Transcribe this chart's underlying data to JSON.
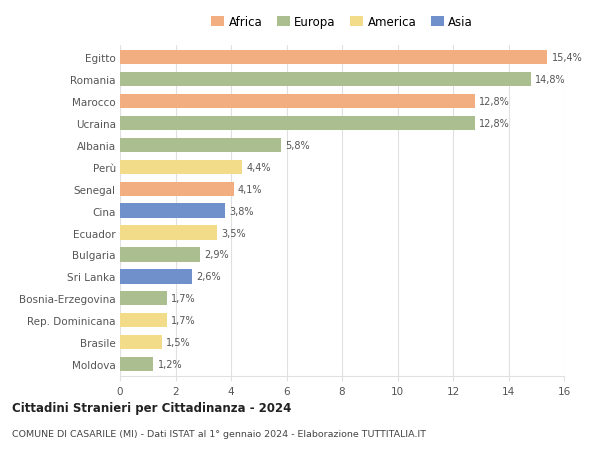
{
  "countries": [
    "Egitto",
    "Romania",
    "Marocco",
    "Ucraina",
    "Albania",
    "Perù",
    "Senegal",
    "Cina",
    "Ecuador",
    "Bulgaria",
    "Sri Lanka",
    "Bosnia-Erzegovina",
    "Rep. Dominicana",
    "Brasile",
    "Moldova"
  ],
  "values": [
    15.4,
    14.8,
    12.8,
    12.8,
    5.8,
    4.4,
    4.1,
    3.8,
    3.5,
    2.9,
    2.6,
    1.7,
    1.7,
    1.5,
    1.2
  ],
  "categories": [
    "Africa",
    "Europa",
    "Africa",
    "Europa",
    "Europa",
    "America",
    "Africa",
    "Asia",
    "America",
    "Europa",
    "Asia",
    "Europa",
    "America",
    "America",
    "Europa"
  ],
  "colors": {
    "Africa": "#F2AE80",
    "Europa": "#ABBE90",
    "America": "#F2DC8A",
    "Asia": "#7090CC"
  },
  "legend_order": [
    "Africa",
    "Europa",
    "America",
    "Asia"
  ],
  "title": "Cittadini Stranieri per Cittadinanza - 2024",
  "subtitle": "COMUNE DI CASARILE (MI) - Dati ISTAT al 1° gennaio 2024 - Elaborazione TUTTITALIA.IT",
  "xlim": [
    0,
    16
  ],
  "xticks": [
    0,
    2,
    4,
    6,
    8,
    10,
    12,
    14,
    16
  ],
  "bar_height": 0.65,
  "background_color": "#ffffff",
  "grid_color": "#e0e0e0",
  "label_color": "#555555",
  "ytick_color": "#555555"
}
